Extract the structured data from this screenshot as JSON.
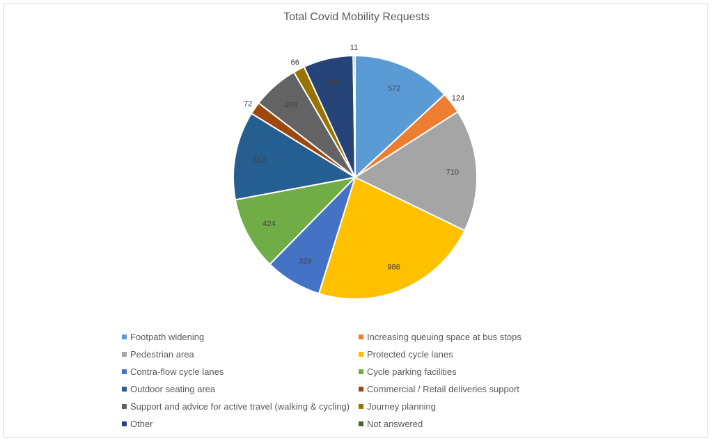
{
  "chart_data": {
    "type": "pie",
    "title": "Total Covid Mobility Requests",
    "legend_position": "bottom",
    "slices": [
      {
        "name": "Footpath widening",
        "value": 572,
        "color": "#5b9bd5",
        "label": "572"
      },
      {
        "name": "Increasing queuing space at bus stops",
        "value": 124,
        "color": "#ed7d31",
        "label": "124"
      },
      {
        "name": "Pedestrian area",
        "value": 710,
        "color": "#a5a5a5",
        "label": "710"
      },
      {
        "name": "Protected cycle lanes",
        "value": 986,
        "color": "#ffc000",
        "label": "986"
      },
      {
        "name": "Contra-flow cycle lanes",
        "value": 329,
        "color": "#4472c4",
        "label": "329"
      },
      {
        "name": "Cycle parking facilities",
        "value": 424,
        "color": "#70ad47",
        "label": "424"
      },
      {
        "name": "Outdoor seating area",
        "value": 513,
        "color": "#255e91",
        "label": "513"
      },
      {
        "name": "Commercial / Retail deliveries support",
        "value": 72,
        "color": "#9e480e",
        "label": "72"
      },
      {
        "name": "Support and advice for active travel (walking & cycling)",
        "value": 269,
        "color": "#636363",
        "label": "269"
      },
      {
        "name": "Journey planning",
        "value": 66,
        "color": "#997300",
        "label": "66"
      },
      {
        "name": "Other",
        "value": 289,
        "color": "#264478",
        "label": "289"
      },
      {
        "name": "Not answered",
        "value": 11,
        "color": "#43682b",
        "label": "11"
      }
    ]
  }
}
